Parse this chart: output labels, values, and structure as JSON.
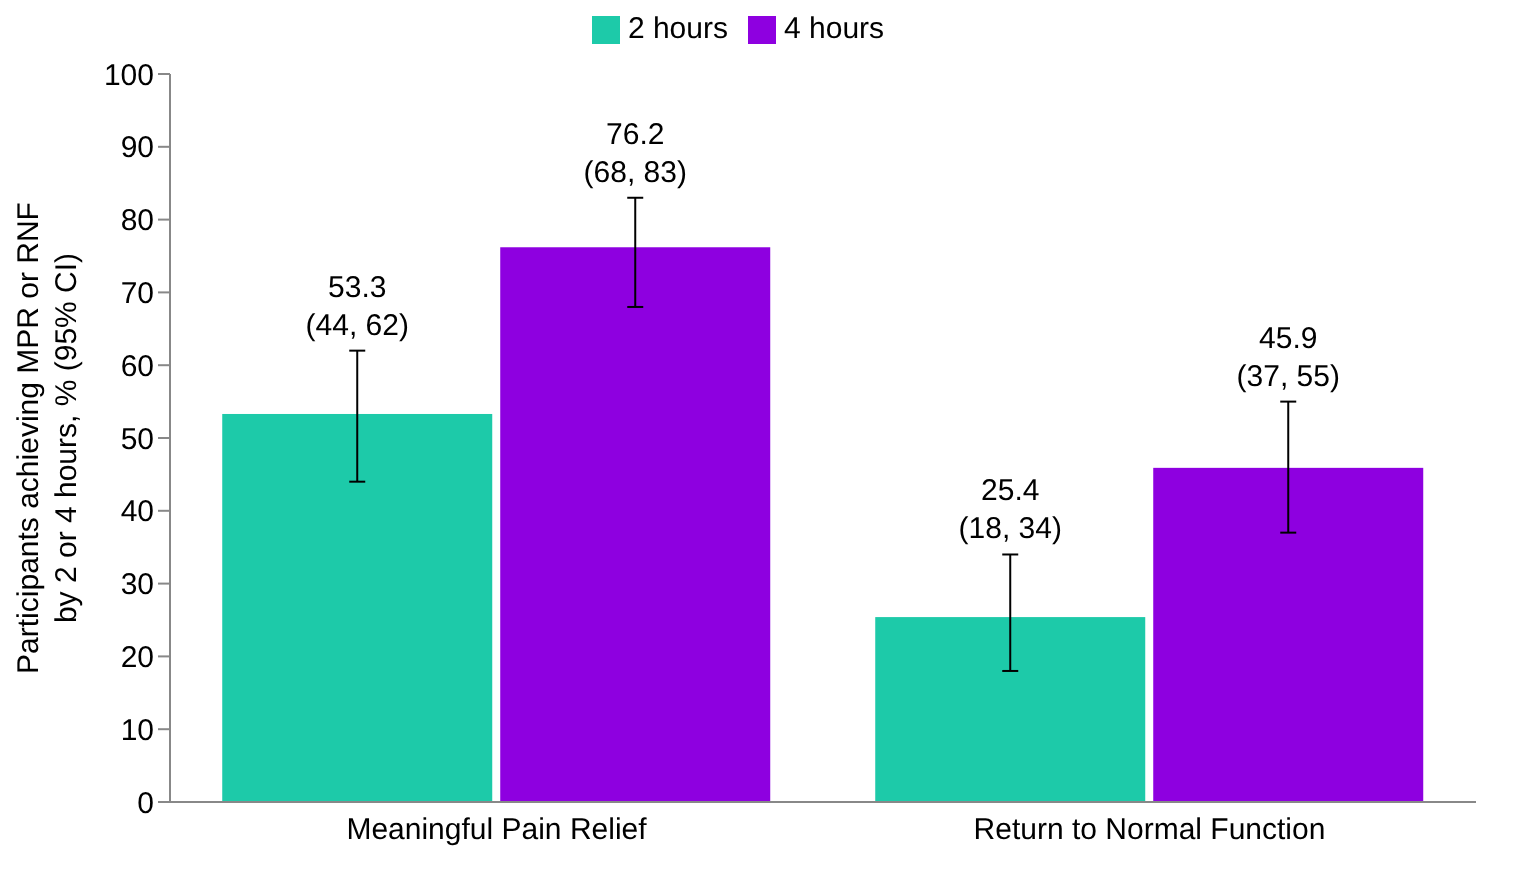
{
  "chart_data": {
    "type": "bar",
    "ylabel": "Participants achieving MPR or RNF by 2 or 4 hours, % (95% CI)",
    "categories": [
      "Meaningful Pain Relief",
      "Return to Normal Function"
    ],
    "series": [
      {
        "name": "2 hours",
        "color": "#1dcaa9",
        "values": [
          53.3,
          25.4
        ],
        "errors": [
          [
            44,
            62
          ],
          [
            18,
            34
          ]
        ],
        "value_labels": [
          "53.3\n(44, 62)",
          "25.4\n(18, 34)"
        ]
      },
      {
        "name": "4 hours",
        "color": "#8e00e0",
        "values": [
          76.2,
          45.9
        ],
        "errors": [
          [
            68,
            83
          ],
          [
            37,
            55
          ]
        ],
        "value_labels": [
          "76.2\n(68, 83)",
          "45.9\n(37, 55)"
        ]
      }
    ],
    "ylim": [
      0,
      100
    ],
    "yticks": [
      0,
      10,
      20,
      30,
      40,
      50,
      60,
      70,
      80,
      90,
      100
    ],
    "grid": false,
    "legend": "top"
  }
}
